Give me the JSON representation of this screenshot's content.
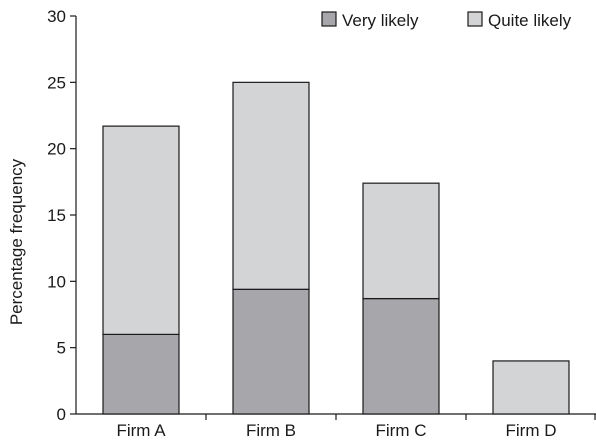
{
  "chart_data": {
    "type": "bar",
    "stacked": true,
    "categories": [
      "Firm A",
      "Firm B",
      "Firm C",
      "Firm D"
    ],
    "series": [
      {
        "name": "Very likely",
        "values": [
          6,
          9.4,
          8.7,
          0
        ],
        "color": "#a7a7ab"
      },
      {
        "name": "Quite likely",
        "values": [
          15.7,
          15.6,
          8.7,
          4
        ],
        "color": "#d3d4d6"
      }
    ],
    "title": "",
    "xlabel": "",
    "ylabel": "Percentage frequency",
    "ylim": [
      0,
      30
    ],
    "yticks": [
      0,
      5,
      10,
      15,
      20,
      25,
      30
    ],
    "grid": false,
    "legend_position": "top-right"
  }
}
